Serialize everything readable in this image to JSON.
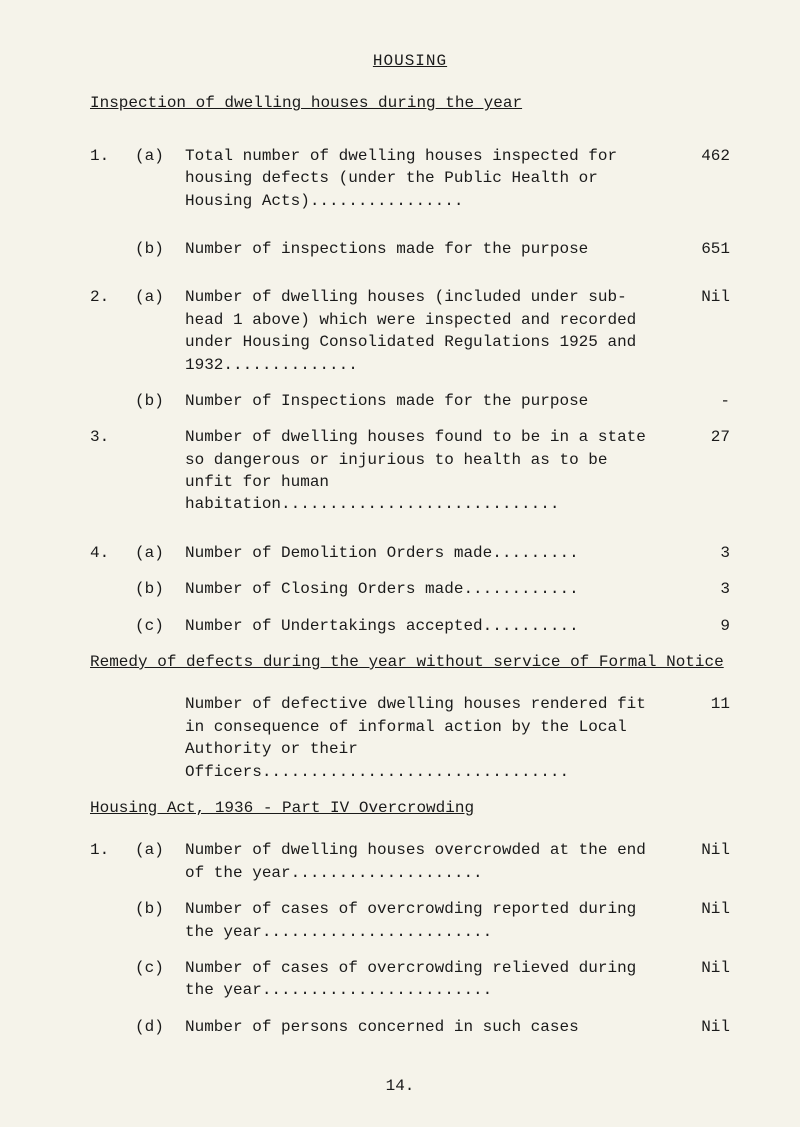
{
  "title": "HOUSING",
  "subtitle": "Inspection of dwelling houses during the year",
  "items": [
    {
      "num": "1.",
      "letter": "(a)",
      "text": "Total number of dwelling houses inspected for housing defects (under the Public Health or Housing Acts)................",
      "value": "462"
    },
    {
      "num": "",
      "letter": "(b)",
      "text": "Number of inspections made for the purpose",
      "value": "651"
    },
    {
      "num": "2.",
      "letter": "(a)",
      "text": "Number of dwelling houses (included under sub-head 1 above) which were inspected and recorded under Housing Consolidated Regulations 1925 and 1932..............",
      "value": "Nil"
    },
    {
      "num": "",
      "letter": "(b)",
      "text": "Number of Inspections made for the purpose",
      "value": "-"
    },
    {
      "num": "3.",
      "letter": "",
      "text": "Number of dwelling houses found to be in a state so dangerous or injurious to health as to be unfit for human habitation.............................",
      "value": "27"
    },
    {
      "num": "4.",
      "letter": "(a)",
      "text": "Number of Demolition Orders made.........",
      "value": "3"
    },
    {
      "num": "",
      "letter": "(b)",
      "text": "Number of Closing Orders made............",
      "value": "3"
    },
    {
      "num": "",
      "letter": "(c)",
      "text": "Number of Undertakings accepted..........",
      "value": "9"
    }
  ],
  "section2_heading": "Remedy of defects during the year without service of Formal Notice",
  "section2_item": {
    "text": "Number of defective dwelling houses rendered fit in consequence of informal action by the Local Authority or their Officers................................",
    "value": "11"
  },
  "section3_heading": "Housing Act, 1936 - Part IV Overcrowding",
  "section3_items": [
    {
      "num": "1.",
      "letter": "(a)",
      "text": "Number of dwelling houses overcrowded at the end of the year....................",
      "value": "Nil"
    },
    {
      "num": "",
      "letter": "(b)",
      "text": "Number of cases of overcrowding reported during the year........................",
      "value": "Nil"
    },
    {
      "num": "",
      "letter": "(c)",
      "text": "Number of cases of overcrowding relieved during the year........................",
      "value": "Nil"
    },
    {
      "num": "",
      "letter": "(d)",
      "text": "Number of persons concerned in such cases",
      "value": "Nil"
    }
  ],
  "page_number": "14."
}
